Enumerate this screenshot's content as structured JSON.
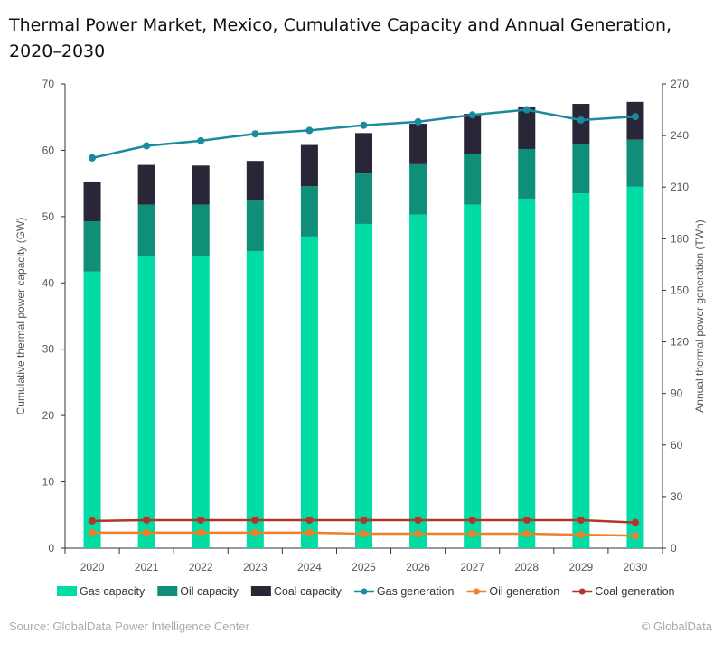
{
  "chart_data": {
    "type": "bar",
    "title": "Thermal Power Market, Mexico, Cumulative Capacity and Annual Generation, 2020–2030",
    "categories": [
      "2020",
      "2021",
      "2022",
      "2023",
      "2024",
      "2025",
      "2026",
      "2027",
      "2028",
      "2029",
      "2030"
    ],
    "ylabel": "Cumulative thermal power capacity (GW)",
    "y2label": "Annual thermal power generation (TWh)",
    "ylim": [
      0,
      70
    ],
    "y2lim": [
      0,
      270
    ],
    "yticks": [
      0,
      10,
      20,
      30,
      40,
      50,
      60,
      70
    ],
    "y2ticks": [
      0,
      30,
      60,
      90,
      120,
      150,
      180,
      210,
      240,
      270
    ],
    "grid": false,
    "legend_position": "bottom",
    "stacked_bars": [
      {
        "name": "Gas capacity",
        "color": "#00DCA3",
        "values": [
          41.7,
          44.0,
          44.0,
          44.8,
          47.0,
          48.9,
          50.3,
          51.8,
          52.7,
          53.5,
          54.5
        ]
      },
      {
        "name": "Oil capacity",
        "color": "#0F8F78",
        "values": [
          7.6,
          7.8,
          7.8,
          7.6,
          7.6,
          7.6,
          7.6,
          7.7,
          7.5,
          7.5,
          7.1
        ]
      },
      {
        "name": "Coal capacity",
        "color": "#292638",
        "values": [
          6.0,
          6.0,
          5.9,
          6.0,
          6.2,
          6.1,
          6.1,
          6.0,
          6.4,
          6.0,
          5.7
        ]
      }
    ],
    "lines": [
      {
        "name": "Gas generation",
        "color": "#1A8A9E",
        "axis": "right",
        "values": [
          227,
          234,
          237,
          241,
          243,
          246,
          248,
          252,
          255,
          249,
          251
        ]
      },
      {
        "name": "Oil generation",
        "color": "#F07F2A",
        "axis": "right",
        "values": [
          9.0,
          9.0,
          9.0,
          9.0,
          9.0,
          8.4,
          8.4,
          8.4,
          8.4,
          7.8,
          7.2
        ]
      },
      {
        "name": "Coal generation",
        "color": "#B3342B",
        "axis": "right",
        "values": [
          15.8,
          16.3,
          16.3,
          16.3,
          16.3,
          16.3,
          16.3,
          16.3,
          16.3,
          16.3,
          14.9
        ]
      }
    ]
  },
  "footer": {
    "source": "Source: GlobalData Power Intelligence Center",
    "copyright": "© GlobalData"
  }
}
